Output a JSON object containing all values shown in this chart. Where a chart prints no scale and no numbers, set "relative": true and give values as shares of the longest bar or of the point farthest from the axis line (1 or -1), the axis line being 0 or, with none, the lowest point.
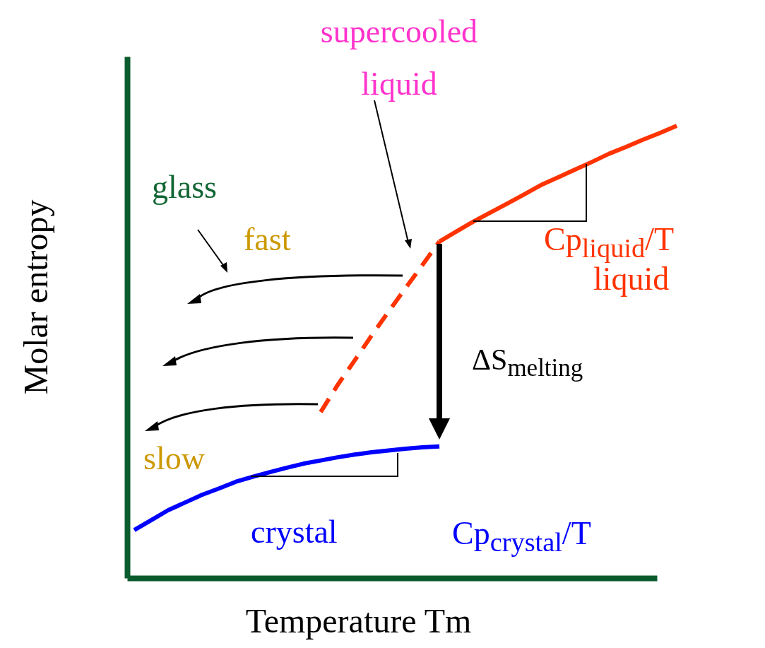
{
  "chart_data": {
    "type": "line",
    "relative": true,
    "xlabel": "Temperature Tm",
    "ylabel": "Molar entropy",
    "categories": [
      null,
      null,
      null,
      null,
      null,
      null,
      null,
      null,
      null,
      null,
      null,
      null,
      null,
      null,
      null,
      null,
      null,
      null,
      null,
      null,
      null,
      null,
      null,
      null,
      null,
      null,
      null,
      null,
      null,
      null,
      null,
      null,
      null
    ],
    "series": [
      {
        "name": "liquid",
        "color": "#ff3300",
        "values": [
          null,
          null,
          null,
          null,
          null,
          null,
          null,
          null,
          null,
          null,
          null,
          null,
          null,
          null,
          null,
          null,
          null,
          null,
          0.744,
          0.766,
          0.788,
          0.808,
          0.828,
          0.848,
          0.869,
          0.886,
          0.903,
          0.92,
          0.938,
          0.953,
          0.969,
          0.984,
          1
        ]
      },
      {
        "name": "supercooled liquid",
        "color": "#ff3300",
        "line_style": "dashed",
        "values": [
          null,
          null,
          null,
          null,
          null,
          null,
          null,
          null,
          null,
          null,
          null,
          0.367,
          0.427,
          0.481,
          0.536,
          0.589,
          0.641,
          0.692,
          0.744,
          null,
          null,
          null,
          null,
          null,
          null,
          null,
          null,
          null,
          null,
          null,
          null,
          null,
          null
        ]
      },
      {
        "name": "crystal",
        "color": "#0000ff",
        "values": [
          0.106,
          0.128,
          0.15,
          0.167,
          0.184,
          0.198,
          0.213,
          0.224,
          0.234,
          0.244,
          0.253,
          0.26,
          0.267,
          0.273,
          0.278,
          0.282,
          0.286,
          0.289,
          0.291,
          null,
          null,
          null,
          null,
          null,
          null,
          null,
          null,
          null,
          null,
          null,
          null,
          null,
          null
        ]
      }
    ],
    "annotations": [
      "glass",
      "Cp$_{liquid}$/T",
      "Cp$_{crystal}$/T",
      "ΔS$_{melting}$",
      "fast",
      "slow"
    ]
  }
}
